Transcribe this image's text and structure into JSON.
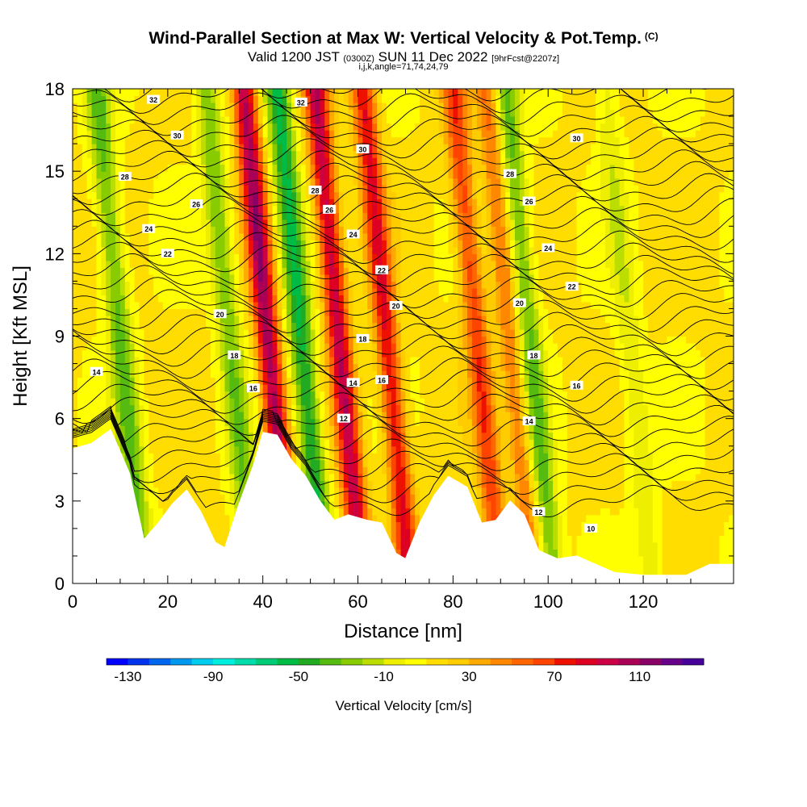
{
  "title": {
    "main": "Wind-Parallel Section at Max W: Vertical Velocity & Pot.Temp.",
    "copyright": "(C)",
    "valid_prefix": "Valid 1200 JST",
    "valid_utc": "(0300Z)",
    "valid_date": "SUN 11 Dec 2022",
    "forecast": "[9hrFcst@2207z]",
    "indices": "i,j,k,angle=71,74,24,79"
  },
  "chart_data": {
    "type": "heatmap",
    "xlabel": "Distance [nm]",
    "ylabel": "Height [Kft MSL]",
    "xlim": [
      0,
      139
    ],
    "ylim": [
      0,
      18
    ],
    "x_ticks": [
      0,
      20,
      40,
      60,
      80,
      100,
      120
    ],
    "y_ticks": [
      0,
      3,
      6,
      9,
      12,
      15,
      18
    ],
    "colorbar": {
      "label": "Vertical Velocity [cm/s]",
      "min": -140,
      "max": 140,
      "step": 10,
      "tick_values": [
        -130,
        -90,
        -50,
        -10,
        30,
        70,
        110
      ],
      "tick_labels": [
        "-130",
        "-90",
        "-50",
        "-10",
        "30",
        "70",
        "110"
      ],
      "colors": [
        "#0000ff",
        "#0033ee",
        "#0066ee",
        "#0099ee",
        "#00ccee",
        "#00eedd",
        "#00ddaa",
        "#00cc77",
        "#00bb44",
        "#22aa22",
        "#55bb11",
        "#88cc00",
        "#bbdd00",
        "#eeee00",
        "#ffff00",
        "#ffdd00",
        "#ffcc00",
        "#ffaa00",
        "#ff8800",
        "#ff6600",
        "#ff4400",
        "#ee1100",
        "#dd0022",
        "#cc0044",
        "#aa0055",
        "#880066",
        "#660088",
        "#440099"
      ]
    },
    "terrain_kft": [
      [
        0,
        4.9
      ],
      [
        4,
        5.1
      ],
      [
        8,
        5.6
      ],
      [
        12,
        4.0
      ],
      [
        15,
        1.6
      ],
      [
        18,
        2.2
      ],
      [
        21,
        2.9
      ],
      [
        24,
        3.4
      ],
      [
        27,
        2.6
      ],
      [
        30,
        1.5
      ],
      [
        32,
        1.3
      ],
      [
        35,
        2.9
      ],
      [
        38,
        4.3
      ],
      [
        40,
        5.5
      ],
      [
        43,
        5.4
      ],
      [
        46,
        4.5
      ],
      [
        49,
        3.9
      ],
      [
        52,
        3.0
      ],
      [
        55,
        2.3
      ],
      [
        58,
        2.5
      ],
      [
        62,
        2.3
      ],
      [
        65,
        2.2
      ],
      [
        68,
        1.1
      ],
      [
        70,
        0.9
      ],
      [
        73,
        2.2
      ],
      [
        76,
        3.2
      ],
      [
        79,
        3.9
      ],
      [
        83,
        3.5
      ],
      [
        86,
        2.2
      ],
      [
        89,
        2.3
      ],
      [
        92,
        3.0
      ],
      [
        95,
        2.5
      ],
      [
        98,
        1.2
      ],
      [
        102,
        0.9
      ],
      [
        106,
        1.0
      ],
      [
        110,
        0.7
      ],
      [
        114,
        0.4
      ],
      [
        120,
        0.3
      ],
      [
        129,
        0.3
      ],
      [
        134,
        0.7
      ],
      [
        139,
        0.7
      ]
    ],
    "updraft_cores_nm": [
      41,
      56,
      66,
      85,
      92
    ],
    "downdraft_cores_nm": [
      10,
      33,
      48,
      96,
      117
    ],
    "potential_temperature_contours": {
      "unit": "C",
      "labels": [
        {
          "value": 32,
          "x": 17,
          "y": 17.6
        },
        {
          "value": 32,
          "x": 48,
          "y": 17.5
        },
        {
          "value": 30,
          "x": 22,
          "y": 16.3
        },
        {
          "value": 30,
          "x": 61,
          "y": 15.8
        },
        {
          "value": 30,
          "x": 106,
          "y": 16.2
        },
        {
          "value": 28,
          "x": 11,
          "y": 14.8
        },
        {
          "value": 28,
          "x": 51,
          "y": 14.3
        },
        {
          "value": 28,
          "x": 92,
          "y": 14.9
        },
        {
          "value": 26,
          "x": 26,
          "y": 13.8
        },
        {
          "value": 26,
          "x": 54,
          "y": 13.6
        },
        {
          "value": 26,
          "x": 96,
          "y": 13.9
        },
        {
          "value": 24,
          "x": 16,
          "y": 12.9
        },
        {
          "value": 24,
          "x": 59,
          "y": 12.7
        },
        {
          "value": 24,
          "x": 100,
          "y": 12.2
        },
        {
          "value": 22,
          "x": 20,
          "y": 12.0
        },
        {
          "value": 22,
          "x": 65,
          "y": 11.4
        },
        {
          "value": 22,
          "x": 105,
          "y": 10.8
        },
        {
          "value": 20,
          "x": 31,
          "y": 9.8
        },
        {
          "value": 20,
          "x": 68,
          "y": 10.1
        },
        {
          "value": 20,
          "x": 94,
          "y": 10.2
        },
        {
          "value": 18,
          "x": 34,
          "y": 8.3
        },
        {
          "value": 18,
          "x": 61,
          "y": 8.9
        },
        {
          "value": 18,
          "x": 97,
          "y": 8.3
        },
        {
          "value": 16,
          "x": 38,
          "y": 7.1
        },
        {
          "value": 16,
          "x": 65,
          "y": 7.4
        },
        {
          "value": 16,
          "x": 106,
          "y": 7.2
        },
        {
          "value": 14,
          "x": 5,
          "y": 7.7
        },
        {
          "value": 14,
          "x": 59,
          "y": 7.3
        },
        {
          "value": 14,
          "x": 96,
          "y": 5.9
        },
        {
          "value": 12,
          "x": 57,
          "y": 6.0
        },
        {
          "value": 12,
          "x": 98,
          "y": 2.6
        },
        {
          "value": 10,
          "x": 109,
          "y": 2.0
        }
      ]
    }
  }
}
